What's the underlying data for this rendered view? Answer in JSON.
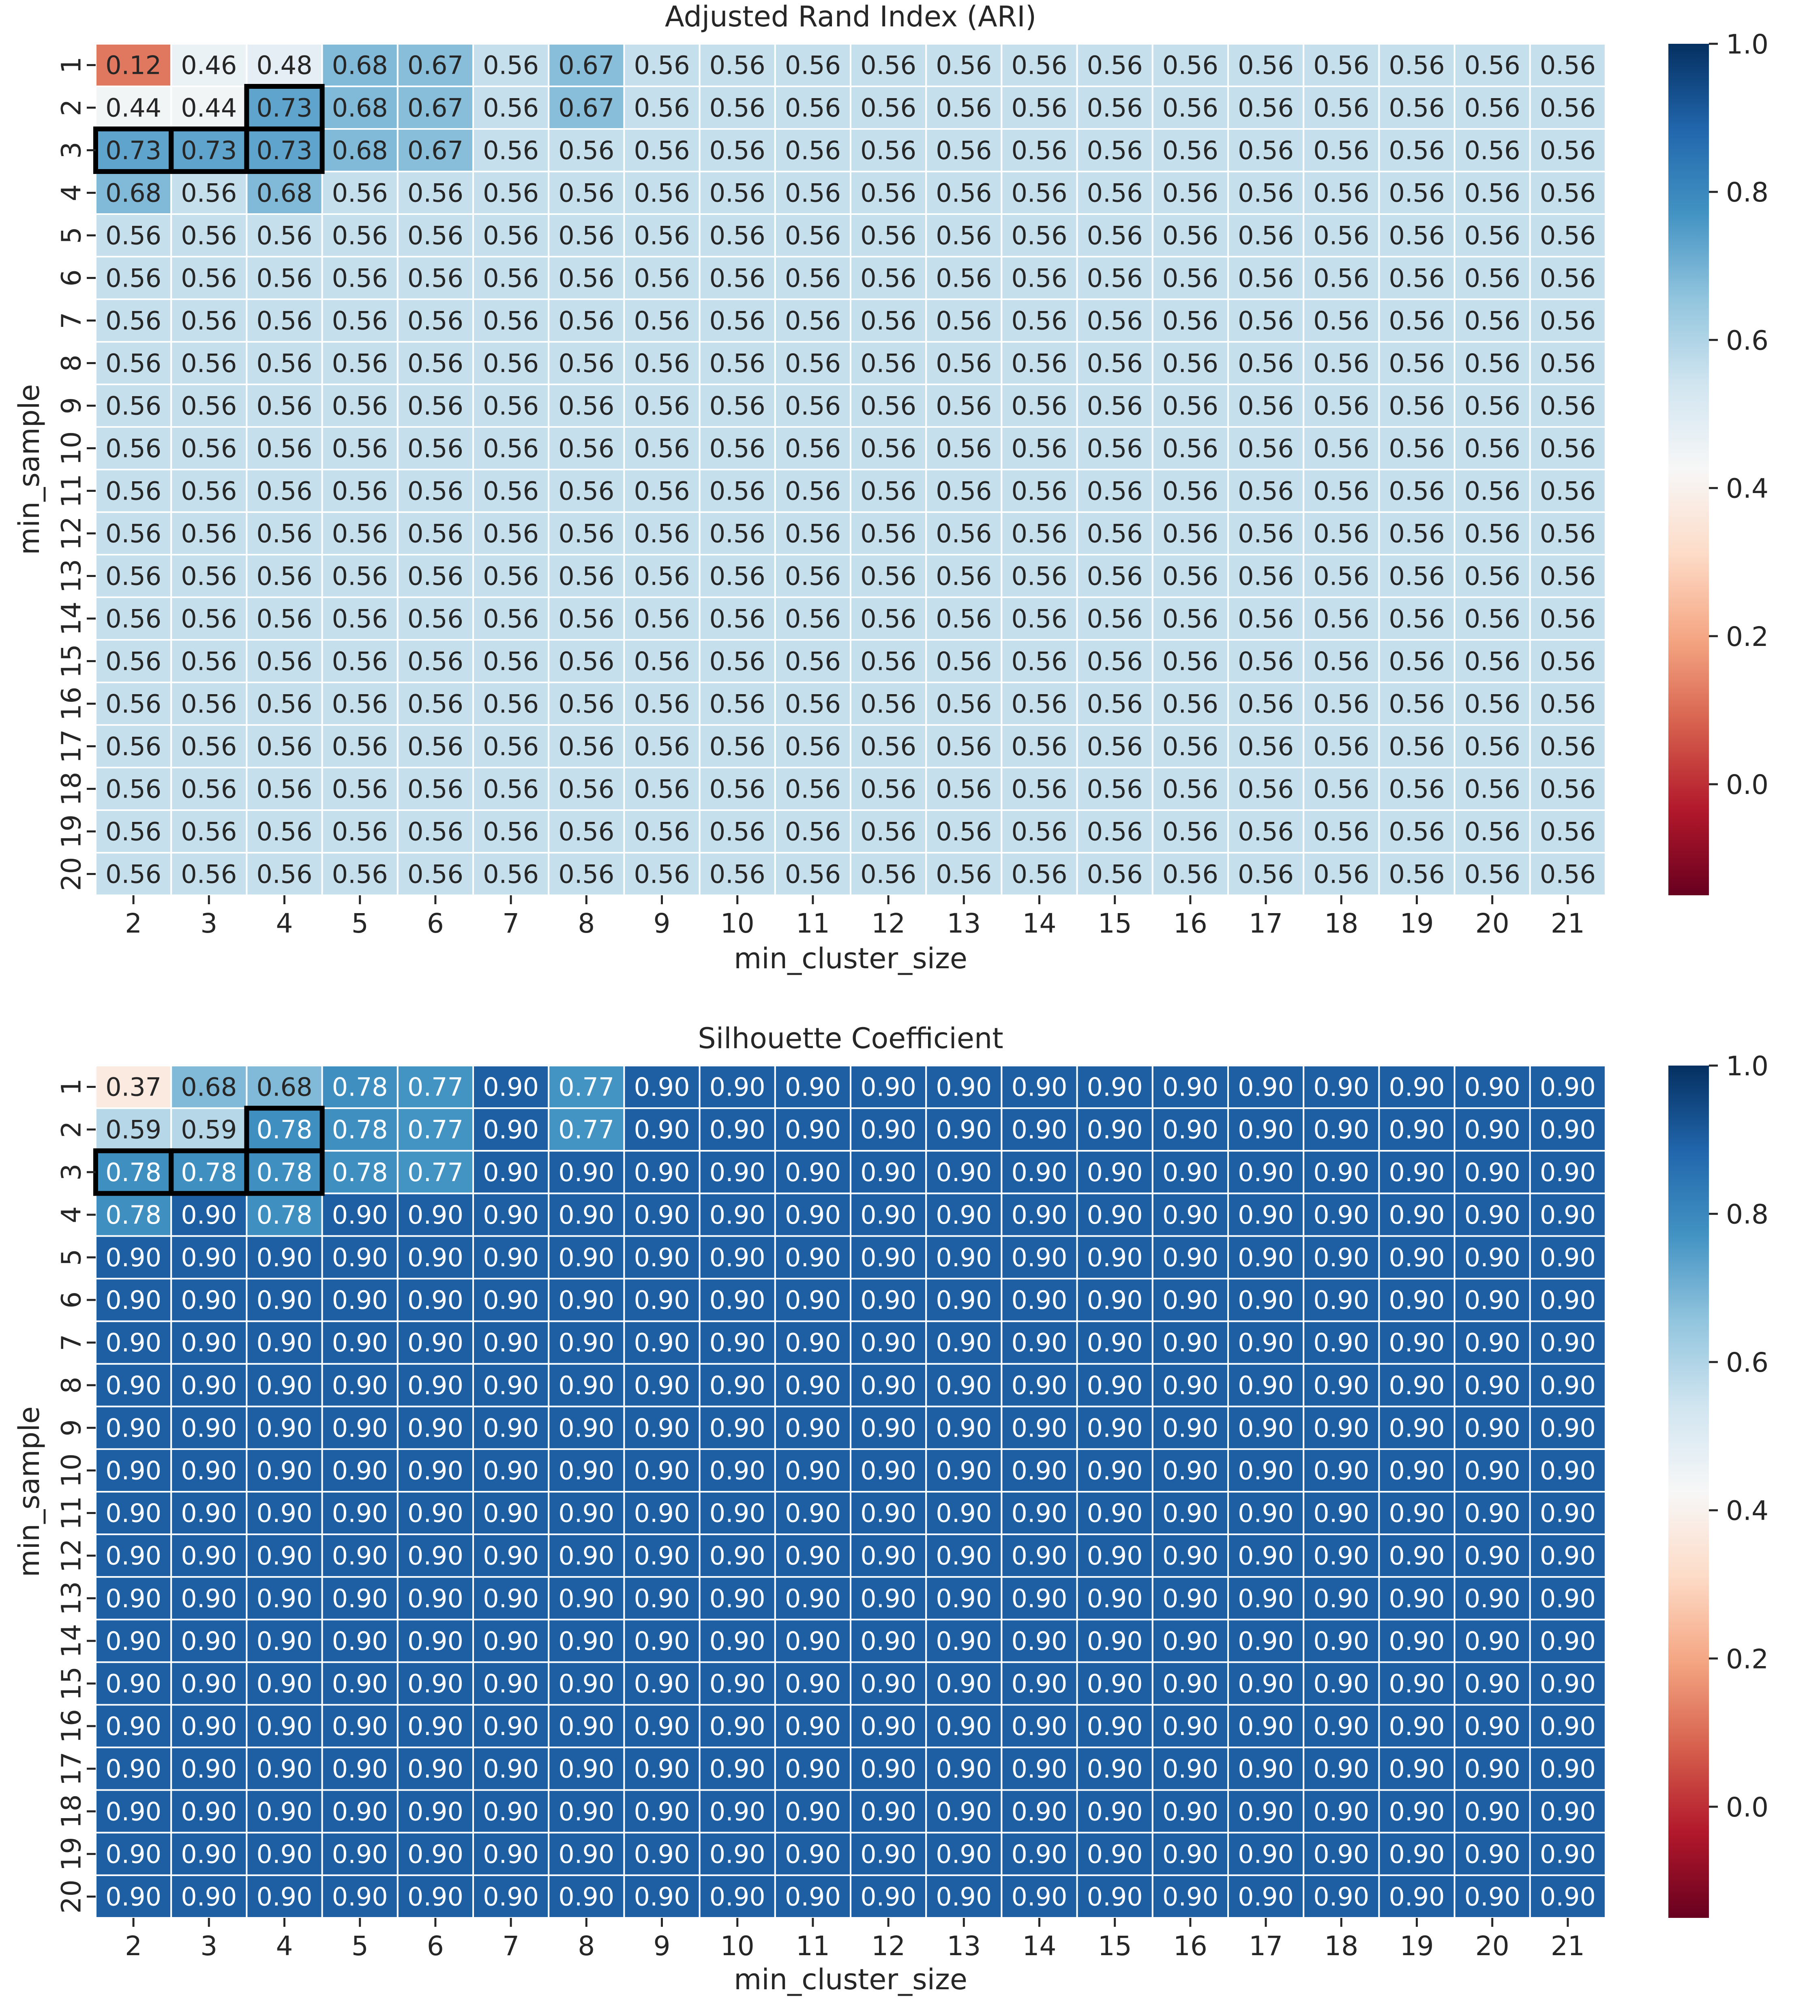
{
  "chart_data": [
    {
      "type": "heatmap",
      "title": "Adjusted Rand Index (ARI)",
      "xlabel": "min_cluster_size",
      "ylabel": "min_sample",
      "x": [
        "2",
        "3",
        "4",
        "5",
        "6",
        "7",
        "8",
        "9",
        "10",
        "11",
        "12",
        "13",
        "14",
        "15",
        "16",
        "17",
        "18",
        "19",
        "20",
        "21"
      ],
      "y": [
        "1",
        "2",
        "3",
        "4",
        "5",
        "6",
        "7",
        "8",
        "9",
        "10",
        "11",
        "12",
        "13",
        "14",
        "15",
        "16",
        "17",
        "18",
        "19",
        "20"
      ],
      "head_rows": [
        [
          "0.12",
          "0.46",
          "0.48",
          "0.68",
          "0.67",
          "0.56",
          "0.67"
        ],
        [
          "0.44",
          "0.44",
          "0.73",
          "0.68",
          "0.67",
          "0.56",
          "0.67"
        ],
        [
          "0.73",
          "0.73",
          "0.73",
          "0.68",
          "0.67",
          "0.56",
          "0.56"
        ],
        [
          "0.68",
          "0.56",
          "0.68",
          "0.56",
          "0.56",
          "0.56",
          "0.56"
        ]
      ],
      "fill_value": "0.56",
      "highlighted_cells": [
        [
          1,
          2
        ],
        [
          2,
          0
        ],
        [
          2,
          1
        ],
        [
          2,
          2
        ]
      ],
      "colormap": "RdBu",
      "colorbar_range": [
        -0.15,
        1.0
      ],
      "colorbar_ticks": [
        "0.0",
        "0.2",
        "0.4",
        "0.6",
        "0.8",
        "1.0"
      ]
    },
    {
      "type": "heatmap",
      "title": "Silhouette Coefficient",
      "xlabel": "min_cluster_size",
      "ylabel": "min_sample",
      "x": [
        "2",
        "3",
        "4",
        "5",
        "6",
        "7",
        "8",
        "9",
        "10",
        "11",
        "12",
        "13",
        "14",
        "15",
        "16",
        "17",
        "18",
        "19",
        "20",
        "21"
      ],
      "y": [
        "1",
        "2",
        "3",
        "4",
        "5",
        "6",
        "7",
        "8",
        "9",
        "10",
        "11",
        "12",
        "13",
        "14",
        "15",
        "16",
        "17",
        "18",
        "19",
        "20"
      ],
      "head_rows": [
        [
          "0.37",
          "0.68",
          "0.68",
          "0.78",
          "0.77",
          "0.90",
          "0.77"
        ],
        [
          "0.59",
          "0.59",
          "0.78",
          "0.78",
          "0.77",
          "0.90",
          "0.77"
        ],
        [
          "0.78",
          "0.78",
          "0.78",
          "0.78",
          "0.77",
          "0.90",
          "0.90"
        ],
        [
          "0.78",
          "0.90",
          "0.78",
          "0.90",
          "0.90",
          "0.90",
          "0.90"
        ]
      ],
      "fill_value": "0.90",
      "highlighted_cells": [
        [
          1,
          2
        ],
        [
          2,
          0
        ],
        [
          2,
          1
        ],
        [
          2,
          2
        ]
      ],
      "colormap": "RdBu",
      "colorbar_range": [
        -0.15,
        1.0
      ],
      "colorbar_ticks": [
        "0.0",
        "0.2",
        "0.4",
        "0.6",
        "0.8",
        "1.0"
      ]
    }
  ]
}
